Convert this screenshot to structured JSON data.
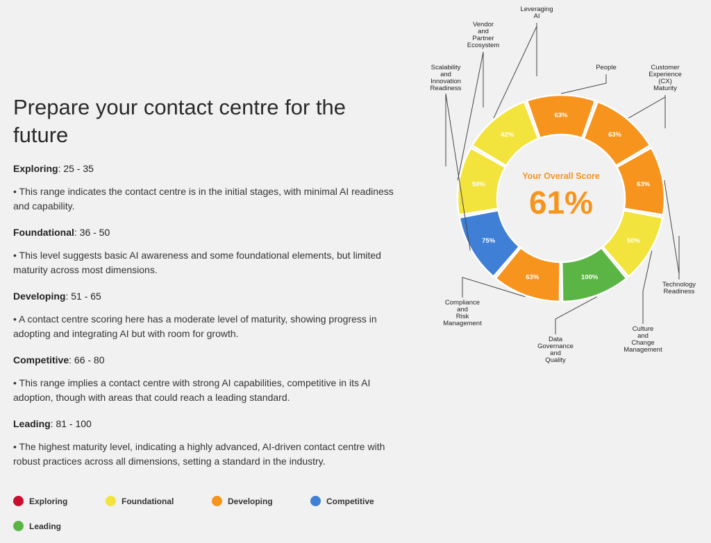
{
  "title": "Prepare your contact centre for the future",
  "levels": [
    {
      "name": "Exploring",
      "range": ": 25 - 35",
      "desc": "• This range indicates the contact centre is in the initial stages, with minimal AI readiness and capability."
    },
    {
      "name": "Foundational",
      "range": ": 36 - 50",
      "desc": "• This level suggests basic AI awareness and some foundational elements, but limited maturity across most dimensions."
    },
    {
      "name": "Developing",
      "range": ": 51 - 65",
      "desc": "• A contact centre scoring here has a moderate level of maturity, showing progress in adopting and integrating AI but with room for growth."
    },
    {
      "name": "Competitive",
      "range": ": 66 - 80",
      "desc": "• This range implies a contact centre with strong AI capabilities, competitive in its AI adoption, though with areas that could reach a leading standard."
    },
    {
      "name": "Leading",
      "range": ": 81 - 100",
      "desc": "• The highest maturity level, indicating a highly advanced, AI-driven contact centre with robust practices across all dimensions, setting a standard in the industry."
    }
  ],
  "legend": [
    {
      "label": "Exploring",
      "color": "#c8102e"
    },
    {
      "label": "Foundational",
      "color": "#f3e33d"
    },
    {
      "label": "Developing",
      "color": "#f7941d"
    },
    {
      "label": "Competitive",
      "color": "#3f7fd6"
    },
    {
      "label": "Leading",
      "color": "#5bb545"
    }
  ],
  "chart_data": {
    "type": "pie",
    "style": "donut",
    "center_label": "Your Overall Score",
    "center_value": "61%",
    "segments": [
      {
        "name": "People",
        "value": 63,
        "label": "63%",
        "color": "#f7941d",
        "name_lines": [
          "People"
        ]
      },
      {
        "name": "Customer Experience (CX) Maturity",
        "value": 63,
        "label": "63%",
        "color": "#f7941d",
        "name_lines": [
          "Customer",
          "Experience",
          "(CX)",
          "Maturity"
        ]
      },
      {
        "name": "Technology Readiness",
        "value": 63,
        "label": "63%",
        "color": "#f7941d",
        "name_lines": [
          "Technology",
          "Readiness"
        ]
      },
      {
        "name": "Culture and Change Management",
        "value": 50,
        "label": "50%",
        "color": "#f3e33d",
        "name_lines": [
          "Culture",
          "and",
          "Change",
          "Management"
        ]
      },
      {
        "name": "Data Governance and Quality",
        "value": 100,
        "label": "100%",
        "color": "#5bb545",
        "name_lines": [
          "Data",
          "Governance",
          "and",
          "Quality"
        ]
      },
      {
        "name": "Compliance and Risk Management",
        "value": 63,
        "label": "63%",
        "color": "#f7941d",
        "name_lines": [
          "Compliance",
          "and",
          "Risk",
          "Management"
        ]
      },
      {
        "name": "Scalability and Innovation Readiness",
        "value": 75,
        "label": "75%",
        "color": "#3f7fd6",
        "name_lines": [
          "Scalability",
          "and",
          "Innovation",
          "Readiness"
        ]
      },
      {
        "name": "Vendor and Partner Ecosystem",
        "value": 50,
        "label": "50%",
        "color": "#f3e33d",
        "name_lines": [
          "Vendor",
          "and",
          "Partner",
          "Ecosystem"
        ]
      },
      {
        "name": "Leveraging AI",
        "value": 42,
        "label": "42%",
        "color": "#f3e33d",
        "name_lines": [
          "Leveraging",
          "AI"
        ]
      }
    ]
  }
}
